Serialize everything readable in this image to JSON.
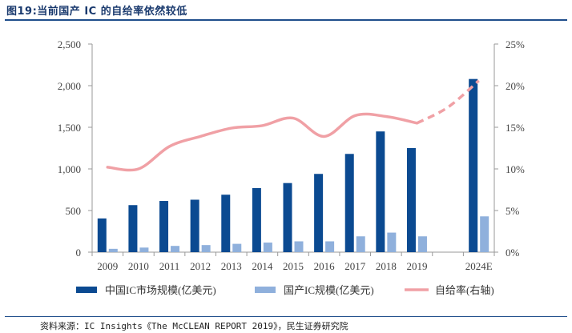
{
  "header": {
    "title": "图19:当前国产 IC 的自给率依然较低"
  },
  "footer": {
    "source": "资料来源：IC Insights《The McCLEAN REPORT 2019》，民生证券研究院"
  },
  "colors": {
    "market": "#0b4a91",
    "domestic": "#8fb0dc",
    "rate": "#f0a0a5",
    "axis": "#999999",
    "title": "#1a3a6e"
  },
  "chart_data": {
    "type": "bar",
    "title": "当前国产 IC 的自给率依然较低",
    "categories": [
      "2009",
      "2010",
      "2011",
      "2012",
      "2013",
      "2014",
      "2015",
      "2016",
      "2017",
      "2018",
      "2019",
      "",
      "2024E"
    ],
    "series": [
      {
        "name": "中国IC市场规模(亿美元)",
        "axis": "left",
        "type": "bar",
        "values": [
          405,
          565,
          615,
          630,
          690,
          770,
          830,
          940,
          1180,
          1450,
          1250,
          null,
          2080
        ]
      },
      {
        "name": "国产IC规模(亿美元)",
        "axis": "left",
        "type": "bar",
        "values": [
          40,
          55,
          75,
          85,
          100,
          115,
          130,
          130,
          190,
          235,
          190,
          null,
          430
        ]
      },
      {
        "name": "自给率(右轴)",
        "axis": "right",
        "type": "line",
        "values": [
          10.2,
          10.0,
          12.7,
          13.9,
          14.9,
          15.2,
          16.1,
          13.9,
          16.4,
          16.3,
          15.5,
          17.4,
          20.6
        ],
        "dashed_from": "2019"
      }
    ],
    "y_left": {
      "min": 0,
      "max": 2500,
      "ticks": [
        "0",
        "500",
        "1,000",
        "1,500",
        "2,000",
        "2,500"
      ],
      "tick_values": [
        0,
        500,
        1000,
        1500,
        2000,
        2500
      ]
    },
    "y_right": {
      "min": 0,
      "max": 25,
      "ticks": [
        "0%",
        "5%",
        "10%",
        "15%",
        "20%",
        "25%"
      ],
      "tick_values": [
        0,
        5,
        10,
        15,
        20,
        25
      ]
    },
    "legend": {
      "placement": "bottom",
      "items": [
        "中国IC市场规模(亿美元)",
        "国产IC规模(亿美元)",
        "自给率(右轴)"
      ]
    }
  }
}
